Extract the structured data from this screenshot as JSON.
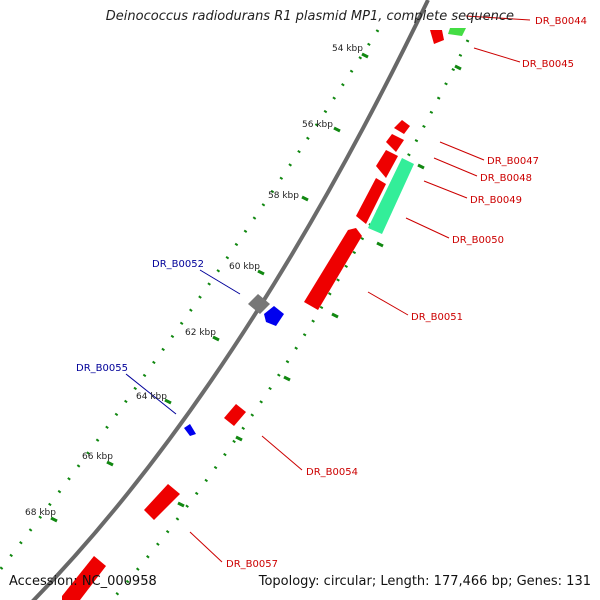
{
  "title": "Deinococcus radiodurans R1 plasmid MP1, complete sequence",
  "footer": {
    "accession": "Accession: NC_000958",
    "summary": "Topology: circular; Length: 177,466 bp; Genes: 131"
  },
  "colors": {
    "forward_gene": "#ff0000",
    "reverse_gene": "#0000ff",
    "forward_label": "#cc0000",
    "reverse_label": "#000099",
    "highlight_gene": "#33ee99",
    "highlight_gene_2": "#44dd44",
    "other_gene": "#777777",
    "backbone": "#888888",
    "tick_dots": "#118811"
  },
  "scale_labels": [
    "54 kbp",
    "56 kbp",
    "58 kbp",
    "60 kbp",
    "62 kbp",
    "64 kbp",
    "66 kbp",
    "68 kbp"
  ],
  "gene_labels": [
    {
      "text": "DR_B0044",
      "strand": "forward"
    },
    {
      "text": "DR_B0045",
      "strand": "forward"
    },
    {
      "text": "DR_B0047",
      "strand": "forward"
    },
    {
      "text": "DR_B0048",
      "strand": "forward"
    },
    {
      "text": "DR_B0049",
      "strand": "forward"
    },
    {
      "text": "DR_B0050",
      "strand": "forward"
    },
    {
      "text": "DR_B0051",
      "strand": "forward"
    },
    {
      "text": "DR_B0052",
      "strand": "reverse"
    },
    {
      "text": "DR_B0054",
      "strand": "forward"
    },
    {
      "text": "DR_B0055",
      "strand": "reverse"
    },
    {
      "text": "DR_B0057",
      "strand": "forward"
    }
  ]
}
